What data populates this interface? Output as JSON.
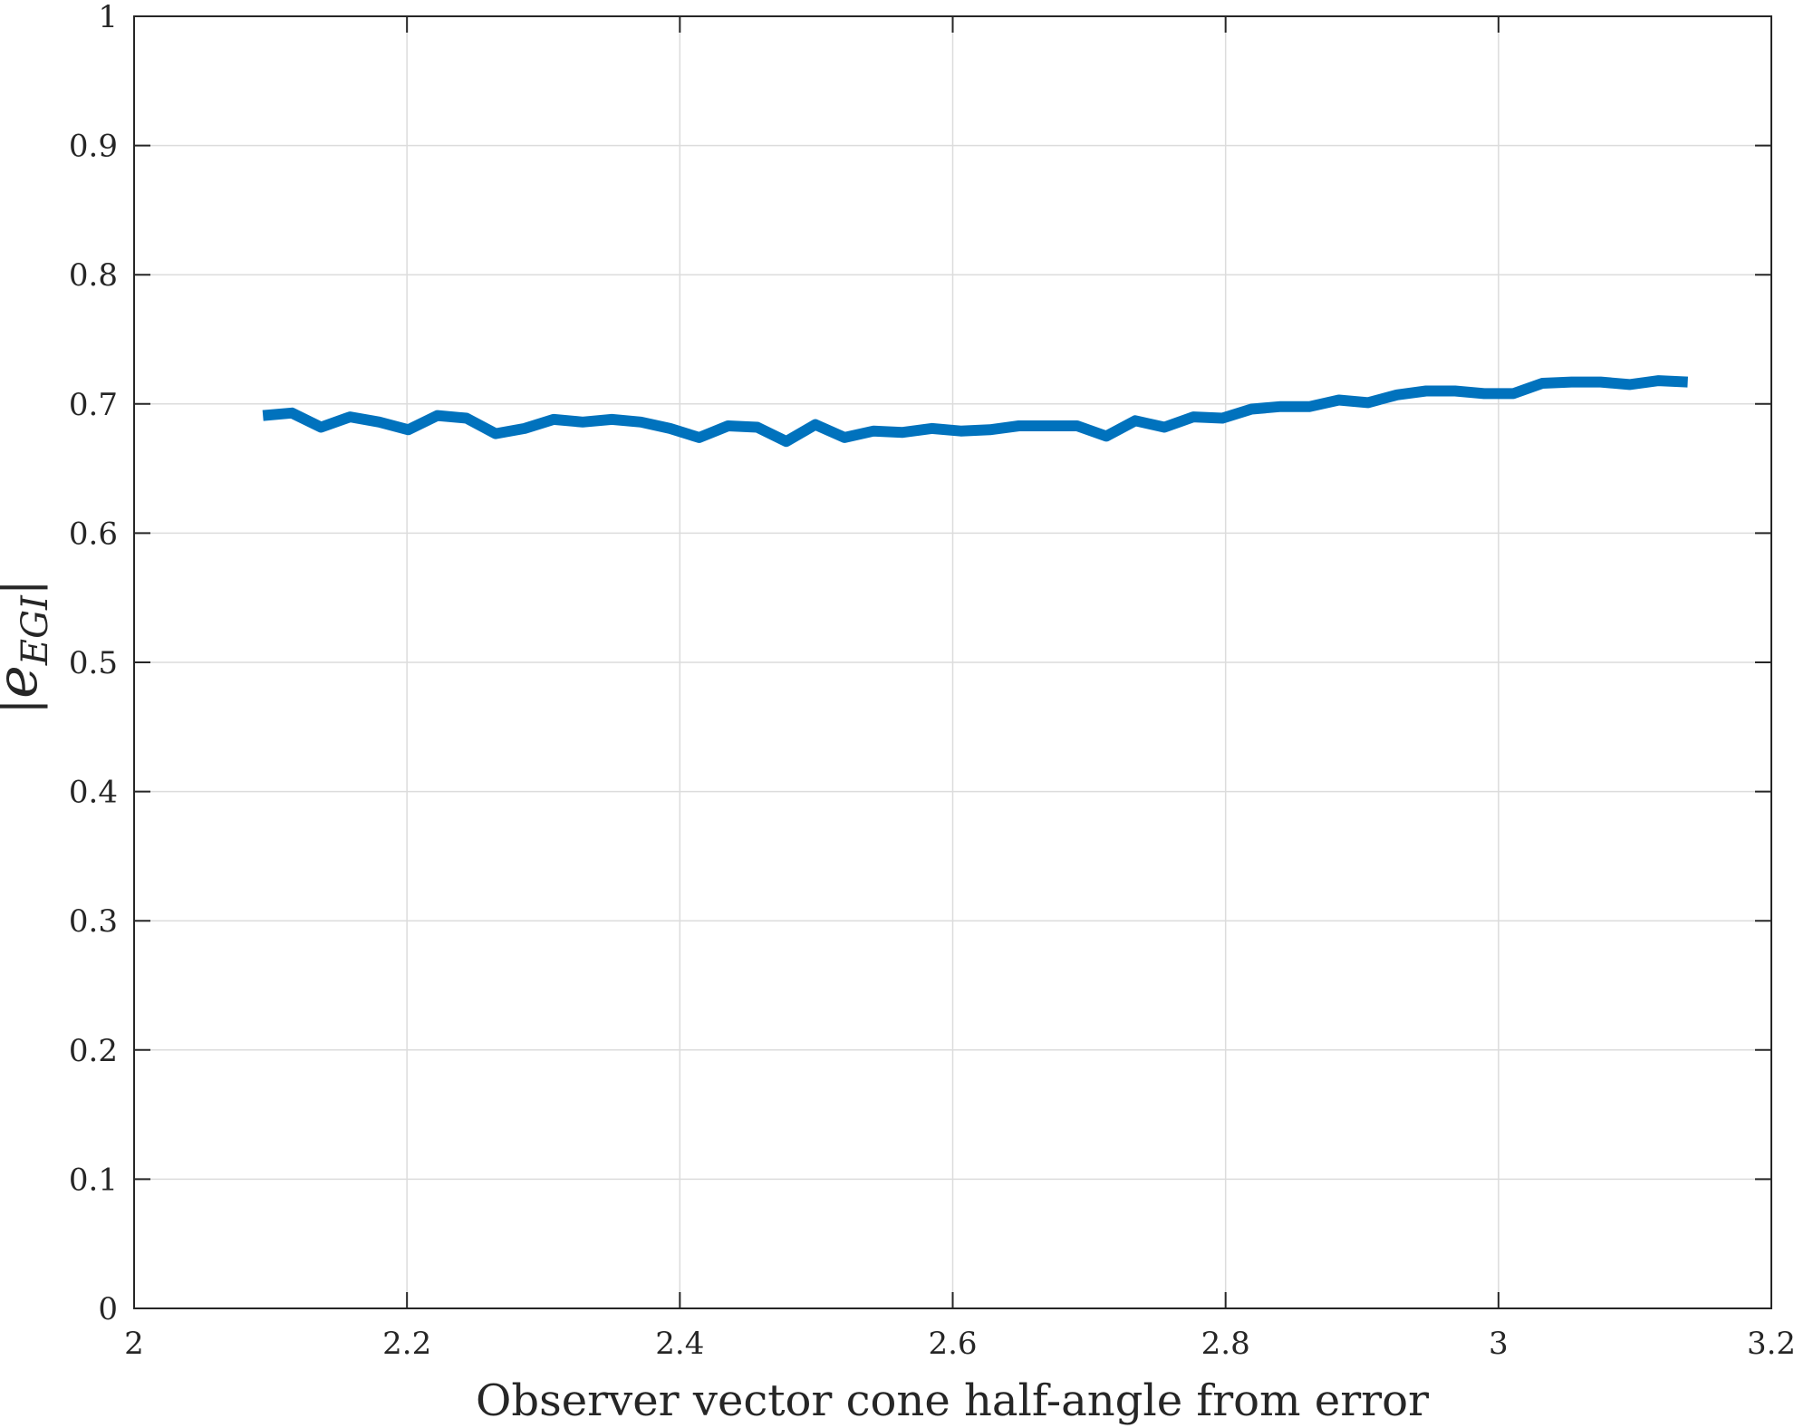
{
  "chart_data": {
    "type": "line",
    "title": "",
    "xlabel": "Observer vector cone half-angle from error",
    "ylabel": {
      "base": "e",
      "subscript": "EGI",
      "bar": "|"
    },
    "xlim": [
      2,
      3.2
    ],
    "ylim": [
      0,
      1
    ],
    "xticks": [
      "2",
      "2.2",
      "2.4",
      "2.6",
      "2.8",
      "3",
      "3.2"
    ],
    "yticks": [
      "0",
      "0.1",
      "0.2",
      "0.3",
      "0.4",
      "0.5",
      "0.6",
      "0.7",
      "0.8",
      "0.9",
      "1"
    ],
    "grid": true,
    "line_color": "#0072bd",
    "axis_color": "#262626",
    "grid_color": "#dcdcdc",
    "series": [
      {
        "x": [
          2.0944,
          2.1157,
          2.137,
          2.1583,
          2.1797,
          2.201,
          2.2223,
          2.2436,
          2.2649,
          2.2862,
          2.3075,
          2.3288,
          2.3502,
          2.3715,
          2.3928,
          2.4141,
          2.4354,
          2.4567,
          2.478,
          2.4993,
          2.5207,
          2.542,
          2.5633,
          2.5846,
          2.6059,
          2.6272,
          2.6485,
          2.6699,
          2.6912,
          2.7125,
          2.7338,
          2.7551,
          2.7764,
          2.7977,
          2.819,
          2.8404,
          2.8617,
          2.883,
          2.9043,
          2.9256,
          2.9469,
          2.9682,
          2.9895,
          3.0109,
          3.0322,
          3.0535,
          3.0748,
          3.0961,
          3.1174,
          3.1387
        ],
        "y": [
          0.691,
          0.693,
          0.682,
          0.69,
          0.686,
          0.68,
          0.691,
          0.689,
          0.677,
          0.681,
          0.688,
          0.686,
          0.688,
          0.686,
          0.681,
          0.674,
          0.683,
          0.682,
          0.671,
          0.684,
          0.674,
          0.679,
          0.678,
          0.681,
          0.679,
          0.68,
          0.683,
          0.683,
          0.683,
          0.675,
          0.687,
          0.682,
          0.69,
          0.689,
          0.696,
          0.698,
          0.698,
          0.703,
          0.701,
          0.707,
          0.71,
          0.71,
          0.708,
          0.708,
          0.716,
          0.717,
          0.717,
          0.715,
          0.718,
          0.717
        ]
      }
    ]
  }
}
